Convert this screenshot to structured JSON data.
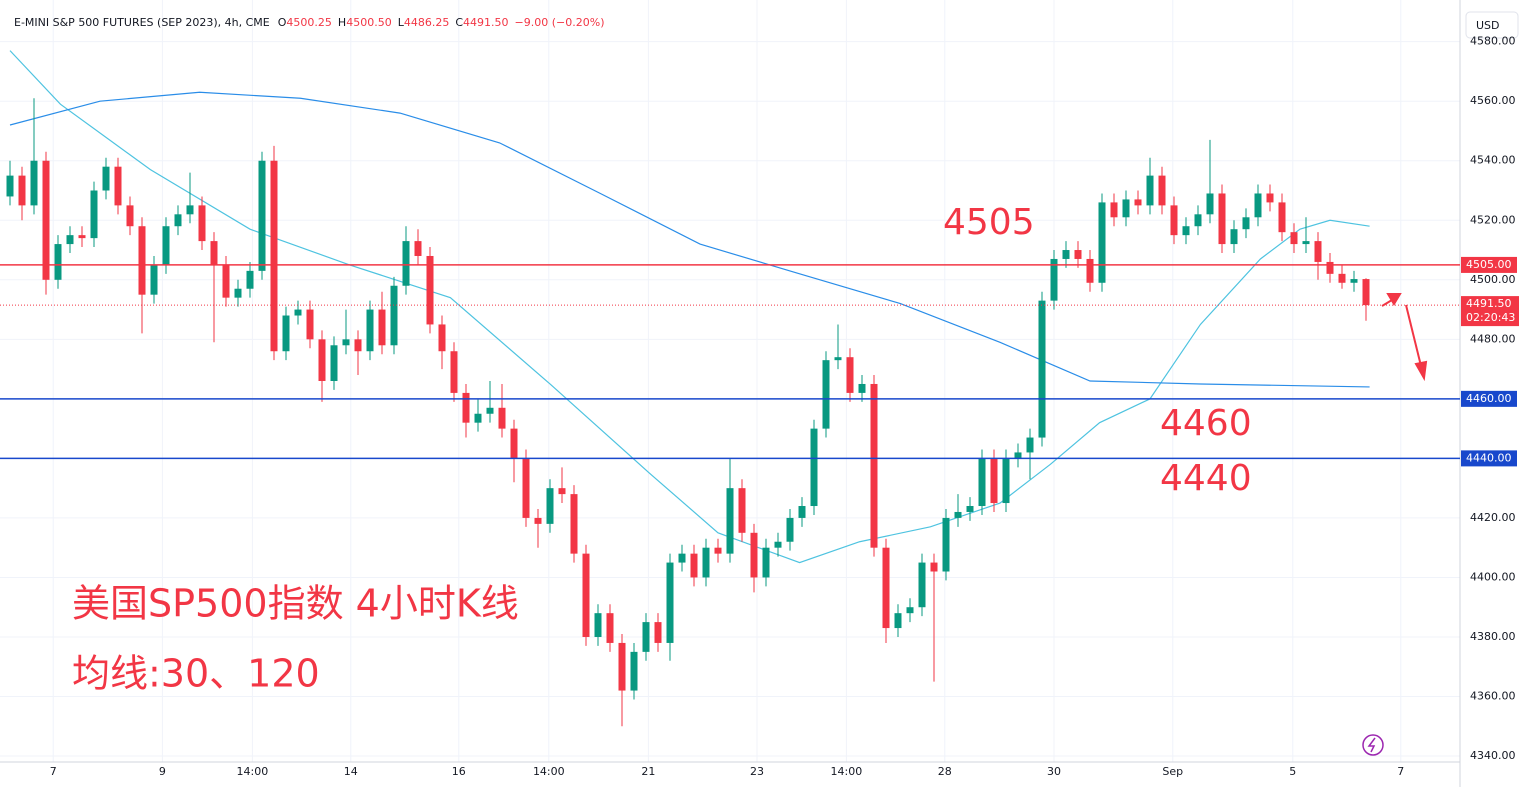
{
  "header": {
    "title": "E-MINI S&P 500 FUTURES (SEP 2023), 4h, CME",
    "o": "O",
    "o_value": "4500.25",
    "h": "H",
    "h_value": "4500.50",
    "l": "L",
    "l_value": "4486.25",
    "c": "C",
    "c_value": "4491.50",
    "change": "−9.00 (−0.20%)",
    "currency": "USD"
  },
  "chart_data": {
    "type": "candlestick",
    "up_color": "#089981",
    "down_color": "#f23645",
    "candles": [
      [
        4528,
        4540,
        4525,
        4535
      ],
      [
        4535,
        4538,
        4520,
        4525
      ],
      [
        4525,
        4561,
        4522,
        4540
      ],
      [
        4540,
        4543,
        4495,
        4500
      ],
      [
        4500,
        4515,
        4497,
        4512
      ],
      [
        4512,
        4518,
        4509,
        4515
      ],
      [
        4515,
        4518,
        4511,
        4514
      ],
      [
        4514,
        4533,
        4511,
        4530
      ],
      [
        4530,
        4541,
        4527,
        4538
      ],
      [
        4538,
        4541,
        4522,
        4525
      ],
      [
        4525,
        4528,
        4515,
        4518
      ],
      [
        4518,
        4521,
        4482,
        4495
      ],
      [
        4495,
        4508,
        4492,
        4505
      ],
      [
        4505,
        4521,
        4502,
        4518
      ],
      [
        4518,
        4525,
        4515,
        4522
      ],
      [
        4522,
        4536,
        4519,
        4525
      ],
      [
        4525,
        4528,
        4510,
        4513
      ],
      [
        4513,
        4516,
        4479,
        4505
      ],
      [
        4505,
        4508,
        4491,
        4494
      ],
      [
        4494,
        4500,
        4491,
        4497
      ],
      [
        4497,
        4506,
        4494,
        4503
      ],
      [
        4503,
        4543,
        4500,
        4540
      ],
      [
        4540,
        4545,
        4473,
        4476
      ],
      [
        4476,
        4491,
        4473,
        4488
      ],
      [
        4488,
        4493,
        4485,
        4490
      ],
      [
        4490,
        4493,
        4477,
        4480
      ],
      [
        4480,
        4483,
        4459,
        4466
      ],
      [
        4466,
        4481,
        4463,
        4478
      ],
      [
        4478,
        4490,
        4475,
        4480
      ],
      [
        4480,
        4483,
        4468,
        4476
      ],
      [
        4476,
        4493,
        4473,
        4490
      ],
      [
        4490,
        4496,
        4475,
        4478
      ],
      [
        4478,
        4501,
        4475,
        4498
      ],
      [
        4498,
        4518,
        4495,
        4513
      ],
      [
        4513,
        4517,
        4505,
        4508
      ],
      [
        4508,
        4511,
        4482,
        4485
      ],
      [
        4485,
        4488,
        4470,
        4476
      ],
      [
        4476,
        4479,
        4459,
        4462
      ],
      [
        4462,
        4465,
        4447,
        4452
      ],
      [
        4452,
        4460,
        4449,
        4455
      ],
      [
        4455,
        4466,
        4452,
        4457
      ],
      [
        4457,
        4465,
        4447,
        4450
      ],
      [
        4450,
        4453,
        4432,
        4440
      ],
      [
        4440,
        4443,
        4417,
        4420
      ],
      [
        4420,
        4423,
        4410,
        4418
      ],
      [
        4418,
        4433,
        4415,
        4430
      ],
      [
        4430,
        4437,
        4425,
        4428
      ],
      [
        4428,
        4431,
        4405,
        4408
      ],
      [
        4408,
        4411,
        4377,
        4380
      ],
      [
        4380,
        4391,
        4377,
        4388
      ],
      [
        4388,
        4391,
        4375,
        4378
      ],
      [
        4378,
        4381,
        4350,
        4362
      ],
      [
        4362,
        4378,
        4359,
        4375
      ],
      [
        4375,
        4388,
        4372,
        4385
      ],
      [
        4385,
        4388,
        4375,
        4378
      ],
      [
        4378,
        4408,
        4372,
        4405
      ],
      [
        4405,
        4411,
        4402,
        4408
      ],
      [
        4408,
        4411,
        4397,
        4400
      ],
      [
        4400,
        4413,
        4397,
        4410
      ],
      [
        4410,
        4413,
        4405,
        4408
      ],
      [
        4408,
        4440,
        4405,
        4430
      ],
      [
        4430,
        4433,
        4412,
        4415
      ],
      [
        4415,
        4418,
        4395,
        4400
      ],
      [
        4400,
        4413,
        4397,
        4410
      ],
      [
        4410,
        4415,
        4407,
        4412
      ],
      [
        4412,
        4423,
        4409,
        4420
      ],
      [
        4420,
        4427,
        4417,
        4424
      ],
      [
        4424,
        4453,
        4421,
        4450
      ],
      [
        4450,
        4476,
        4447,
        4473
      ],
      [
        4473,
        4485,
        4470,
        4474
      ],
      [
        4474,
        4477,
        4459,
        4462
      ],
      [
        4462,
        4468,
        4459,
        4465
      ],
      [
        4465,
        4468,
        4407,
        4410
      ],
      [
        4410,
        4413,
        4378,
        4383
      ],
      [
        4383,
        4391,
        4380,
        4388
      ],
      [
        4388,
        4393,
        4385,
        4390
      ],
      [
        4390,
        4408,
        4387,
        4405
      ],
      [
        4405,
        4408,
        4365,
        4402
      ],
      [
        4402,
        4423,
        4399,
        4420
      ],
      [
        4420,
        4428,
        4417,
        4422
      ],
      [
        4422,
        4427,
        4419,
        4424
      ],
      [
        4424,
        4443,
        4421,
        4440
      ],
      [
        4440,
        4443,
        4422,
        4425
      ],
      [
        4425,
        4443,
        4422,
        4440
      ],
      [
        4440,
        4445,
        4437,
        4442
      ],
      [
        4442,
        4450,
        4433,
        4447
      ],
      [
        4447,
        4496,
        4444,
        4493
      ],
      [
        4493,
        4510,
        4490,
        4507
      ],
      [
        4507,
        4513,
        4504,
        4510
      ],
      [
        4510,
        4513,
        4504,
        4507
      ],
      [
        4507,
        4510,
        4496,
        4499
      ],
      [
        4499,
        4529,
        4496,
        4526
      ],
      [
        4526,
        4529,
        4518,
        4521
      ],
      [
        4521,
        4530,
        4518,
        4527
      ],
      [
        4527,
        4530,
        4522,
        4525
      ],
      [
        4525,
        4541,
        4522,
        4535
      ],
      [
        4535,
        4538,
        4522,
        4525
      ],
      [
        4525,
        4528,
        4512,
        4515
      ],
      [
        4515,
        4521,
        4512,
        4518
      ],
      [
        4518,
        4525,
        4515,
        4522
      ],
      [
        4522,
        4547,
        4519,
        4529
      ],
      [
        4529,
        4532,
        4509,
        4512
      ],
      [
        4512,
        4520,
        4509,
        4517
      ],
      [
        4517,
        4524,
        4514,
        4521
      ],
      [
        4521,
        4532,
        4518,
        4529
      ],
      [
        4529,
        4532,
        4523,
        4526
      ],
      [
        4526,
        4529,
        4513,
        4516
      ],
      [
        4516,
        4519,
        4509,
        4512
      ],
      [
        4512,
        4521,
        4509,
        4513
      ],
      [
        4513,
        4516,
        4500,
        4506
      ],
      [
        4506,
        4509,
        4499,
        4502
      ],
      [
        4502,
        4505,
        4497,
        4499
      ],
      [
        4499,
        4503,
        4496,
        4500.25
      ],
      [
        4500.25,
        4500.5,
        4486.25,
        4491.5
      ]
    ],
    "lines": [
      {
        "color": "#4ec3e0",
        "x": [
          0,
          4.2,
          11.7,
          20,
          28.3,
          36.7,
          45,
          53.3,
          59,
          65.8,
          70.8,
          76.7,
          82.5,
          86.7,
          90.8,
          95,
          99.2,
          104.2,
          107.5,
          110,
          113.3
        ],
        "values": [
          4577,
          4559,
          4537,
          4517,
          4505,
          4494,
          4465,
          4435,
          4415,
          4405,
          4412,
          4417,
          4425,
          4438,
          4452,
          4460,
          4485,
          4507,
          4517,
          4520,
          4518
        ]
      },
      {
        "color": "#2a8de8",
        "x": [
          0,
          7.5,
          15.8,
          24.2,
          32.5,
          40.8,
          49.2,
          57.5,
          65.8,
          74.2,
          82.5,
          90,
          99.2,
          113.3
        ],
        "values": [
          4552,
          4560,
          4563,
          4561,
          4556,
          4546,
          4529,
          4512,
          4502,
          4492,
          4479,
          4466,
          4465,
          4464
        ]
      }
    ],
    "ylim": [
      4338,
      4594
    ],
    "yticks": [
      {
        "value": 4340,
        "label": "4340.00"
      },
      {
        "value": 4360,
        "label": "4360.00"
      },
      {
        "value": 4380,
        "label": "4380.00"
      },
      {
        "value": 4400,
        "label": "4400.00"
      },
      {
        "value": 4420,
        "label": "4420.00"
      },
      {
        "value": 4440,
        "label": "4440.00"
      },
      {
        "value": 4460,
        "label": "4460.00"
      },
      {
        "value": 4480,
        "label": "4480.00"
      },
      {
        "value": 4500,
        "label": "4500.00"
      },
      {
        "value": 4520,
        "label": "4520.00"
      },
      {
        "value": 4540,
        "label": "4540.00"
      },
      {
        "value": 4560,
        "label": "4560.00"
      },
      {
        "value": 4580,
        "label": "4580.00"
      }
    ],
    "xticks": [
      {
        "value": 3.6,
        "label": "7"
      },
      {
        "value": 12.7,
        "label": "9"
      },
      {
        "value": 20.2,
        "label": "14:00"
      },
      {
        "value": 28.4,
        "label": "14"
      },
      {
        "value": 37.4,
        "label": "16"
      },
      {
        "value": 44.9,
        "label": "14:00"
      },
      {
        "value": 53.2,
        "label": "21"
      },
      {
        "value": 62.25,
        "label": "23"
      },
      {
        "value": 69.7,
        "label": "14:00"
      },
      {
        "value": 77.9,
        "label": "28"
      },
      {
        "value": 87,
        "label": "30"
      },
      {
        "value": 96.9,
        "label": "Sep"
      },
      {
        "value": 106.9,
        "label": "5"
      },
      {
        "value": 115.9,
        "label": "7"
      }
    ],
    "levels": [
      {
        "value": 4505,
        "label": "4505.00",
        "color": "#f23645"
      },
      {
        "value": 4460,
        "label": "4460.00",
        "color": "#1848cc"
      },
      {
        "value": 4440,
        "label": "4440.00",
        "color": "#1848cc"
      }
    ],
    "last_price": {
      "value": 4491.5,
      "label": "4491.50",
      "countdown": "02:20:43",
      "color": "#f23645"
    },
    "grid": true,
    "annotations": [
      "4505",
      "4460",
      "4440",
      "美国SP500指数 4小时K线",
      "均线:30、120"
    ]
  }
}
